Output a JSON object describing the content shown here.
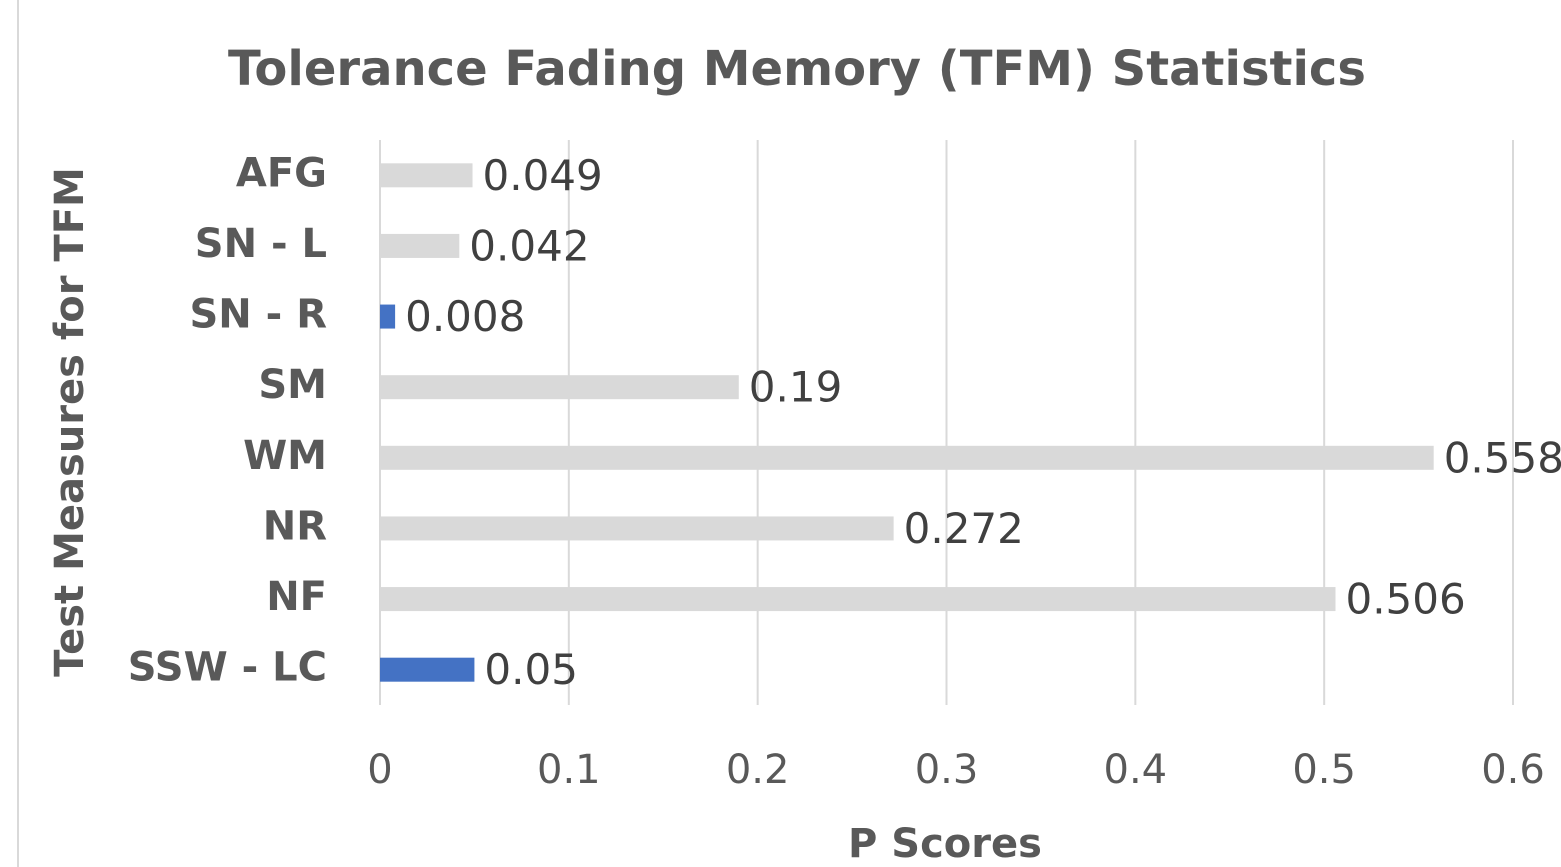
{
  "chart_data": {
    "type": "bar",
    "orientation": "horizontal",
    "title": "Tolerance Fading Memory (TFM) Statistics",
    "x_label": "P Scores",
    "y_label": "Test Measures for TFM",
    "categories": [
      "AFG",
      "SN - L",
      "SN - R",
      "SM",
      "WM",
      "NR",
      "NF",
      "SSW - LC"
    ],
    "values": [
      0.049,
      0.042,
      0.008,
      0.19,
      0.558,
      0.272,
      0.506,
      0.05
    ],
    "colors": [
      "#d9d9d9",
      "#d9d9d9",
      "#4472c4",
      "#d9d9d9",
      "#d9d9d9",
      "#d9d9d9",
      "#d9d9d9",
      "#4472c4"
    ],
    "xlim": [
      0,
      0.6
    ],
    "xticks": [
      0,
      0.1,
      0.2,
      0.3,
      0.4,
      0.5,
      0.6
    ],
    "grid": true
  }
}
